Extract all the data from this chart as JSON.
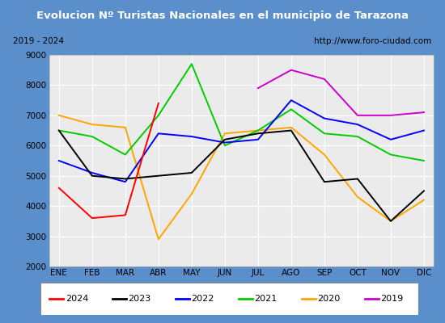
{
  "title": "Evolucion Nº Turistas Nacionales en el municipio de Tarazona",
  "subtitle_left": "2019 - 2024",
  "subtitle_right": "http://www.foro-ciudad.com",
  "months": [
    "ENE",
    "FEB",
    "MAR",
    "ABR",
    "MAY",
    "JUN",
    "JUL",
    "AGO",
    "SEP",
    "OCT",
    "NOV",
    "DIC"
  ],
  "series": {
    "2024": [
      4600,
      3600,
      3700,
      7400,
      null,
      null,
      null,
      null,
      null,
      null,
      null,
      null
    ],
    "2023": [
      6500,
      5000,
      4900,
      5000,
      5100,
      6200,
      6400,
      6500,
      4800,
      4900,
      3500,
      4500
    ],
    "2022": [
      5500,
      5100,
      4800,
      6400,
      6300,
      6100,
      6200,
      7500,
      6900,
      6700,
      6200,
      6500
    ],
    "2021": [
      6500,
      6300,
      5700,
      7000,
      8700,
      6000,
      6500,
      7200,
      6400,
      6300,
      5700,
      5500
    ],
    "2020": [
      7000,
      6700,
      6600,
      2900,
      4400,
      6400,
      6500,
      6600,
      5700,
      4300,
      3500,
      4200
    ],
    "2019": [
      null,
      null,
      null,
      null,
      null,
      null,
      7900,
      8500,
      8200,
      7000,
      7000,
      7100
    ]
  },
  "colors": {
    "2024": "#ff0000",
    "2023": "#000000",
    "2022": "#0000ff",
    "2021": "#00cc00",
    "2020": "#ffa500",
    "2019": "#cc00cc"
  },
  "ylim": [
    2000,
    9000
  ],
  "yticks": [
    2000,
    3000,
    4000,
    5000,
    6000,
    7000,
    8000,
    9000
  ],
  "title_bg_color": "#5b8fcc",
  "title_text_color": "#ffffff",
  "plot_bg_color": "#ebebeb",
  "grid_color": "#ffffff",
  "outer_bg_color": "#5b8fcc",
  "inner_bg_color": "#f5f5f5",
  "legend_years": [
    "2024",
    "2023",
    "2022",
    "2021",
    "2020",
    "2019"
  ]
}
